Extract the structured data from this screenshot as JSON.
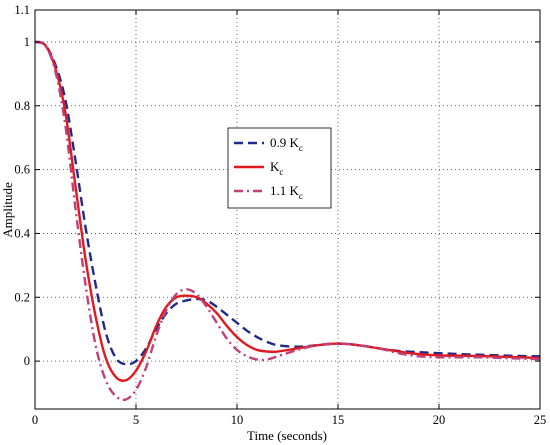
{
  "chart_data": {
    "type": "line",
    "title": "",
    "xlabel": "Time (seconds)",
    "ylabel": "Amplitude",
    "xlim": [
      0,
      25
    ],
    "ylim": [
      -0.15,
      1.1
    ],
    "xticks": [
      "0",
      "5",
      "10",
      "15",
      "20",
      "25"
    ],
    "xtick_values": [
      0,
      5,
      10,
      15,
      20,
      25
    ],
    "yticks": [
      "0",
      "0.2",
      "0.4",
      "0.6",
      "0.8",
      "1",
      "1.1"
    ],
    "ytick_values": [
      0,
      0.2,
      0.4,
      0.6,
      0.8,
      1.0,
      1.1
    ],
    "grid": true,
    "legend_position": "center",
    "series": [
      {
        "name": "0.9 K",
        "name_sub": "c",
        "color": "#1f2a8c",
        "style": "dashed",
        "x": [
          0,
          0.5,
          1,
          1.5,
          2,
          2.5,
          3,
          3.5,
          4,
          4.5,
          5,
          5.5,
          6,
          6.5,
          7,
          7.5,
          8,
          8.5,
          9,
          9.5,
          10,
          10.5,
          11,
          11.5,
          12,
          13,
          14,
          15,
          16,
          17,
          18,
          19,
          20,
          21,
          22,
          23,
          24,
          25
        ],
        "y": [
          1.0,
          0.99,
          0.93,
          0.82,
          0.63,
          0.42,
          0.24,
          0.09,
          0.01,
          -0.01,
          0.0,
          0.04,
          0.1,
          0.15,
          0.18,
          0.19,
          0.195,
          0.19,
          0.17,
          0.145,
          0.12,
          0.095,
          0.075,
          0.06,
          0.05,
          0.045,
          0.05,
          0.055,
          0.05,
          0.04,
          0.032,
          0.028,
          0.025,
          0.022,
          0.02,
          0.018,
          0.016,
          0.015
        ]
      },
      {
        "name": "K",
        "name_sub": "c",
        "color": "#e0191f",
        "style": "solid",
        "x": [
          0,
          0.5,
          1,
          1.5,
          2,
          2.5,
          3,
          3.5,
          4,
          4.5,
          5,
          5.5,
          6,
          6.5,
          7,
          7.5,
          8,
          8.5,
          9,
          9.5,
          10,
          10.5,
          11,
          11.5,
          12,
          13,
          14,
          15,
          16,
          17,
          18,
          19,
          20,
          21,
          22,
          23,
          24,
          25
        ],
        "y": [
          1.0,
          0.99,
          0.92,
          0.78,
          0.55,
          0.32,
          0.14,
          0.01,
          -0.05,
          -0.06,
          -0.03,
          0.03,
          0.11,
          0.17,
          0.2,
          0.205,
          0.2,
          0.18,
          0.15,
          0.11,
          0.075,
          0.05,
          0.035,
          0.03,
          0.03,
          0.04,
          0.05,
          0.055,
          0.05,
          0.04,
          0.03,
          0.022,
          0.018,
          0.017,
          0.016,
          0.014,
          0.012,
          0.01
        ]
      },
      {
        "name": "1.1 K",
        "name_sub": "c",
        "color": "#c0407a",
        "style": "dashdot",
        "x": [
          0,
          0.5,
          1,
          1.5,
          2,
          2.5,
          3,
          3.5,
          4,
          4.5,
          5,
          5.5,
          6,
          6.5,
          7,
          7.5,
          8,
          8.5,
          9,
          9.5,
          10,
          10.5,
          11,
          11.5,
          12,
          13,
          14,
          15,
          16,
          17,
          18,
          19,
          20,
          21,
          22,
          23,
          24,
          25
        ],
        "y": [
          1.0,
          0.99,
          0.91,
          0.74,
          0.48,
          0.24,
          0.05,
          -0.06,
          -0.11,
          -0.12,
          -0.09,
          -0.02,
          0.08,
          0.16,
          0.21,
          0.225,
          0.21,
          0.17,
          0.12,
          0.07,
          0.035,
          0.015,
          0.005,
          0.005,
          0.015,
          0.035,
          0.05,
          0.055,
          0.05,
          0.04,
          0.025,
          0.015,
          0.012,
          0.012,
          0.012,
          0.01,
          0.008,
          0.006
        ]
      }
    ]
  }
}
